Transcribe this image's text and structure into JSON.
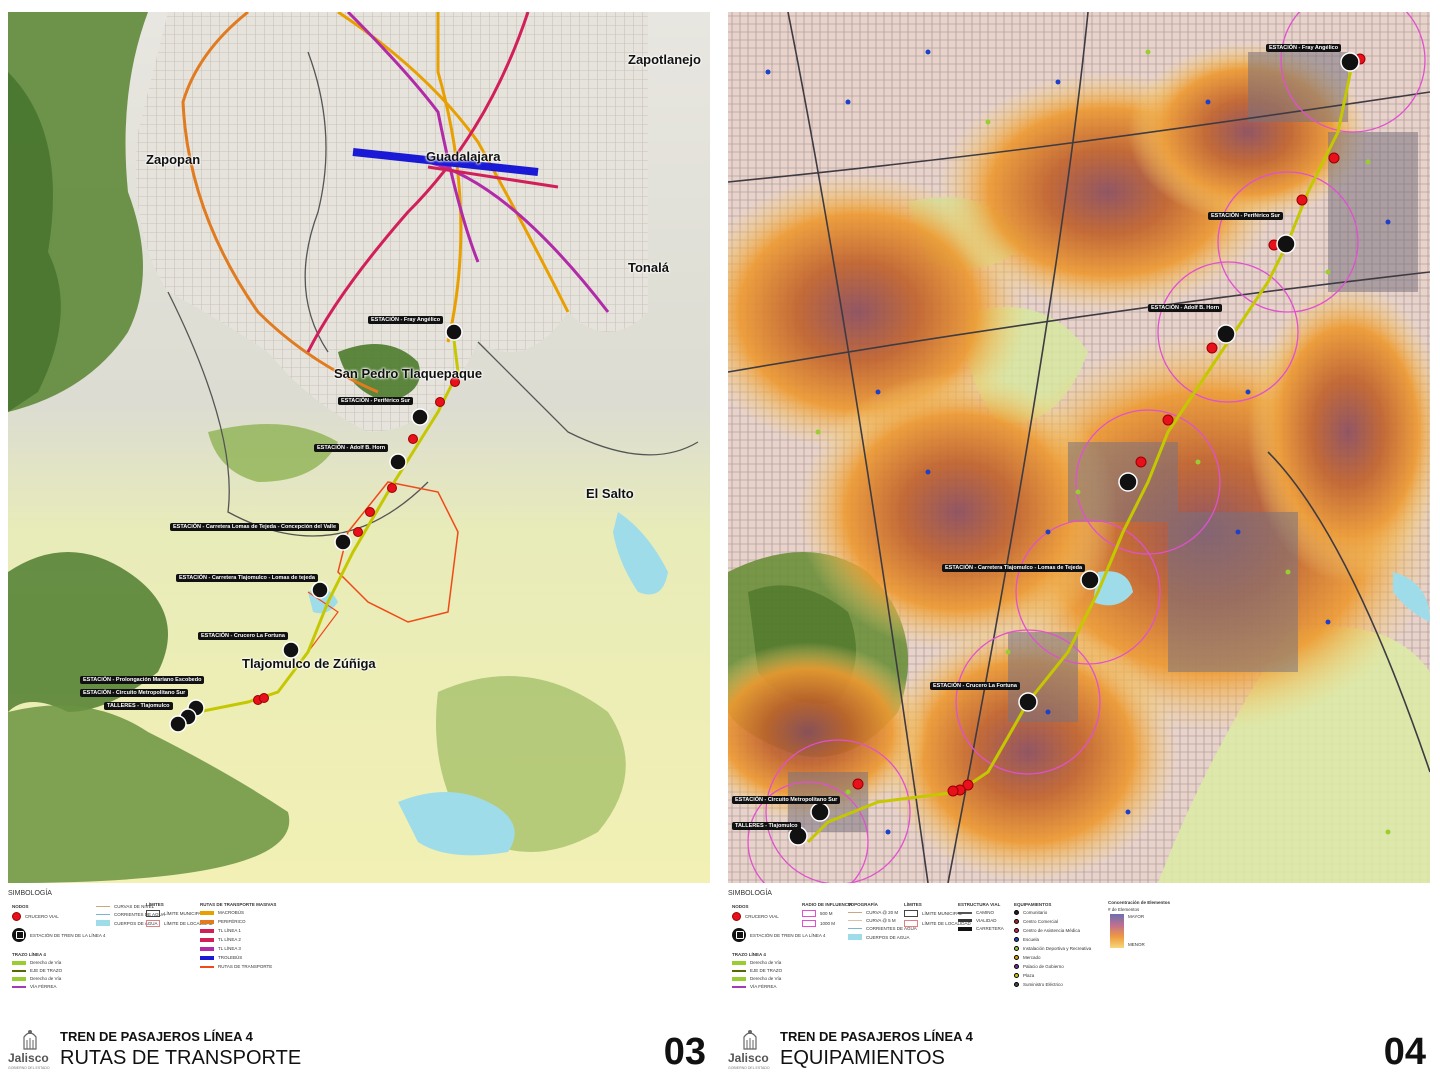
{
  "left_panel": {
    "cities": {
      "zapopan": "Zapopan",
      "guadalajara": "Guadalajara",
      "zapotlanejo": "Zapotlanejo",
      "tonala": "Tonalá",
      "san_pedro": "San Pedro Tlaquepaque",
      "el_salto": "El Salto",
      "tlajomulco": "Tlajomulco de Zúñiga"
    },
    "stations": {
      "fray_angelico": "ESTACIÓN - Fray Angélico",
      "periferico_sur": "ESTACIÓN - Periférico Sur",
      "adolf_horn": "ESTACIÓN - Adolf B. Horn",
      "lomas_tejeda_concepcion": "ESTACIÓN - Carretera Lomas de Tejeda - Concepción del Valle",
      "tlajomulco_lomas": "ESTACIÓN - Carretera Tlajomulco - Lomas de tejeda",
      "crucero_fortuna": "ESTACIÓN - Crucero La Fortuna",
      "mariano_escobedo": "ESTACIÓN - Prolongación Mariano Escobedo",
      "circuito_metropolitano": "ESTACIÓN - Circuito Metropolitano Sur",
      "talleres": "TALLERES - Tlajomulco"
    },
    "legend": {
      "title": "SIMBOLOGÍA",
      "nodos_head": "NODOS",
      "cruce_vial": "CRUCERO VIAL",
      "estacion": "ESTACIÓN DE TREN DE LA LÍNEA 4",
      "trazo_head": "TRAZO LÍNEA 4",
      "derecho_via": "Derecho de Vía",
      "eje_trazo": "EJE DE TRAZO",
      "derecho_via_2": "Derecho de Vía",
      "via_ferrea": "VÍA FÉRREA",
      "curvas": "CURVAS DE NIVEL",
      "corrientes": "CORRIENTES DE AGUA",
      "cuerpos": "CUERPOS DE AGUA",
      "limites_head": "LÍMITES",
      "limite_municipal": "LÍMITE MUNICIPAL",
      "limite_localidad": "LÍMITE DE LOCALIDAD",
      "rutas_head": "RUTAS DE TRANSPORTE MASIVAS",
      "macrobus": "MACROBÚS",
      "periferico": "PERIFÉRICO",
      "linea1": "TL LÍNEA 1",
      "linea2": "TL LÍNEA 2",
      "linea3": "TL LÍNEA 3",
      "trolebus": "TROLEBÚS",
      "rutas_transporte": "RUTAS DE TRANSPORTE"
    },
    "footer": {
      "logo_name": "Jalisco",
      "logo_sub": "GOBIERNO DEL ESTADO",
      "title": "TREN DE PASAJEROS LÍNEA 4",
      "subtitle": "RUTAS DE TRANSPORTE",
      "sheet": "03"
    }
  },
  "right_panel": {
    "stations": {
      "fray_angelico": "ESTACIÓN - Fray Angélico",
      "periferico_sur": "ESTACIÓN - Periférico Sur",
      "adolf_horn": "ESTACIÓN - Adolf B. Horn",
      "tlajomulco_lomas": "ESTACIÓN - Carretera Tlajomulco - Lomas de Tejeda",
      "crucero_fortuna": "ESTACIÓN - Crucero La Fortuna",
      "circuito_metropolitano": "ESTACIÓN - Circuito Metropolitano Sur",
      "talleres": "TALLERES - Tlajomulco"
    },
    "legend": {
      "title": "SIMBOLOGÍA",
      "nodos_head": "NODOS",
      "cruce_vial": "CRUCERO VIAL",
      "estacion": "ESTACIÓN DE TREN DE LA LÍNEA 4",
      "trazo_head": "TRAZO LÍNEA 4",
      "derecho_via": "Derecho de Vía",
      "eje_trazo": "EJE DE TRAZO",
      "derecho_via_2": "Derecho de Vía",
      "via_ferrea": "VÍA FÉRREA",
      "radio_head": "RADIO DE INFLUENCIA",
      "radio_500": "500 M",
      "radio_1000": "1000 M",
      "topo_head": "TOPOGRAFÍA",
      "curva_20": "CURVA @ 20 M",
      "curva_5": "CURVA @ 5 M",
      "corrientes": "CORRIENTES DE AGUA",
      "cuerpos": "CUERPOS DE AGUA",
      "limites_head": "LÍMITES",
      "limite_municipal": "LÍMITE MUNICIPAL",
      "limite_localidad": "LÍMITE DE LOCALIDAD",
      "estructura_head": "ESTRUCTURA VIAL",
      "camino": "CAMINO",
      "vialidad": "VIALIDAD",
      "carretera": "CARRETERA",
      "equip_head": "EQUIPAMIENTOS",
      "equip_items": [
        "Comunitario",
        "Centro Comercial",
        "Centro de Asistencia Médica",
        "Escuela",
        "Instalación Deportiva y Recreativa",
        "Mercado",
        "Palacio de Gobierno",
        "Plaza",
        "Suministro Eléctrico"
      ],
      "equip_colors": [
        "#222222",
        "#b22222",
        "#cc2255",
        "#1e40c8",
        "#9acd32",
        "#e0a000",
        "#7a2ea0",
        "#cccc00",
        "#444444"
      ],
      "conc_head": "Concentración de Elementos",
      "conc_sub": "# de Elementos",
      "conc_high": "MAYOR",
      "conc_low": "MENOR"
    },
    "footer": {
      "logo_name": "Jalisco",
      "logo_sub": "GOBIERNO DEL ESTADO",
      "title": "TREN DE PASAJEROS LÍNEA 4",
      "subtitle": "EQUIPAMIENTOS",
      "sheet": "04"
    }
  },
  "colors": {
    "macrobus": "#e8a000",
    "periferico": "#e07b1f",
    "linea1": "#d11f5a",
    "linea2": "#d11f5a",
    "linea3": "#b12aa8",
    "trolebus": "#1a1ad6",
    "rutas_transporte": "#f04a18",
    "via_linea4": "#c5c800",
    "cruce_vial": "#e8101a"
  }
}
